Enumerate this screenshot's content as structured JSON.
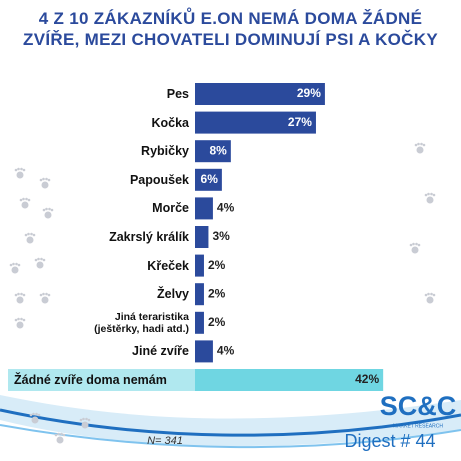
{
  "chart_data": {
    "type": "bar",
    "orientation": "horizontal",
    "title": "4 Z 10 ZÁKAZNÍKŮ E.ON NEMÁ DOMA ŽÁDNÉ ZVÍŘE, MEZI CHOVATELI DOMINUJÍ PSI A KOČKY",
    "categories": [
      "Pes",
      "Kočka",
      "Rybičky",
      "Papoušek",
      "Morče",
      "Zakrslý králík",
      "Křeček",
      "Želvy",
      "Jiná teraristika (ještěrky, hadi atd.)",
      "Jiné zvíře",
      "Žádné zvíře doma nemám"
    ],
    "values": [
      29,
      27,
      8,
      6,
      4,
      3,
      2,
      2,
      2,
      4,
      42
    ],
    "value_labels": [
      "29%",
      "27%",
      "8%",
      "6%",
      "4%",
      "3%",
      "2%",
      "2%",
      "2%",
      "4%",
      "42%"
    ],
    "colors": [
      "#2b4a9c",
      "#2b4a9c",
      "#2b4a9c",
      "#2b4a9c",
      "#2b4a9c",
      "#2b4a9c",
      "#2b4a9c",
      "#2b4a9c",
      "#2b4a9c",
      "#2b4a9c",
      "#6fd6e2"
    ]
  },
  "footer": {
    "sample": "N= 341",
    "brand": "SC&C",
    "brand_sub": "MARKET RESEARCH",
    "issue": "Digest # 44"
  }
}
